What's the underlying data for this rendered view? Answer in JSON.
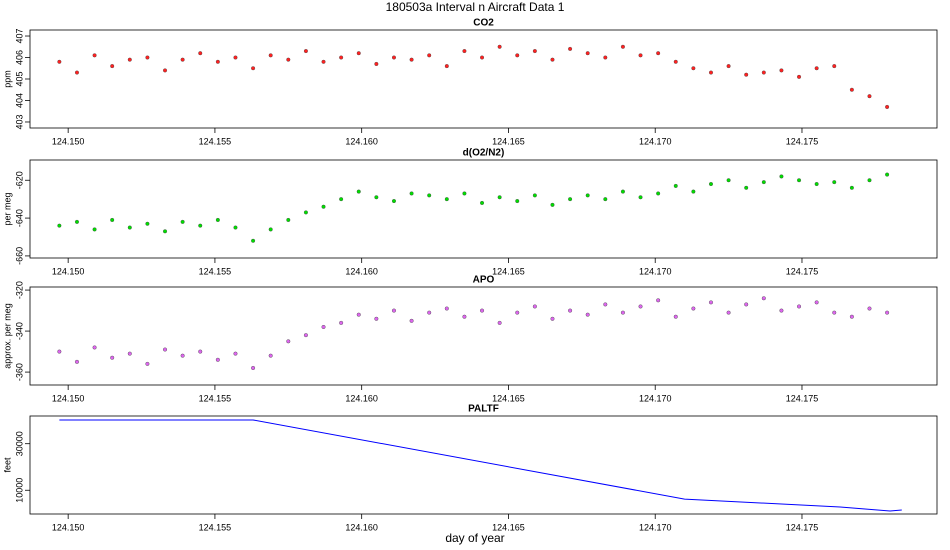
{
  "title": "180503a   Interval n Aircraft Data 1",
  "xlabel": "day of year",
  "chart_data": [
    {
      "type": "scatter",
      "title": "CO2",
      "ylabel": "ppm",
      "color": "#ff2020",
      "x": [
        124.1497,
        124.1503,
        124.1509,
        124.1515,
        124.1521,
        124.1527,
        124.1533,
        124.1539,
        124.1545,
        124.1551,
        124.1557,
        124.1563,
        124.1569,
        124.1575,
        124.1581,
        124.1587,
        124.1593,
        124.1599,
        124.1605,
        124.1611,
        124.1617,
        124.1623,
        124.1629,
        124.1635,
        124.1641,
        124.1647,
        124.1653,
        124.1659,
        124.1665,
        124.1671,
        124.1677,
        124.1683,
        124.1689,
        124.1695,
        124.1701,
        124.1707,
        124.1713,
        124.1719,
        124.1725,
        124.1731,
        124.1737,
        124.1743,
        124.1749,
        124.1755,
        124.1761,
        124.1767,
        124.1773,
        124.1779
      ],
      "values": [
        405.8,
        405.3,
        406.1,
        405.6,
        405.9,
        406.0,
        405.4,
        405.9,
        406.2,
        405.8,
        406.0,
        405.5,
        406.1,
        405.9,
        406.3,
        405.8,
        406.0,
        406.2,
        405.7,
        406.0,
        405.9,
        406.1,
        405.6,
        406.3,
        406.0,
        406.5,
        406.1,
        406.3,
        405.9,
        406.4,
        406.2,
        406.0,
        406.5,
        406.1,
        406.2,
        405.8,
        405.5,
        405.3,
        405.6,
        405.2,
        405.3,
        405.4,
        405.1,
        405.5,
        405.6,
        404.5,
        404.2,
        403.7
      ],
      "xlim": [
        124.1487,
        124.1796
      ],
      "ylim": [
        402.72,
        407.28
      ],
      "xticks": [
        {
          "value": 124.15,
          "label": "124.150"
        },
        124.155,
        {
          "value": 124.16,
          "label": "124.160"
        },
        124.165,
        {
          "value": 124.17,
          "label": "124.170"
        },
        124.175
      ],
      "yticks": [
        403,
        404,
        405,
        406,
        407
      ]
    },
    {
      "type": "scatter",
      "title": "d(O2/N2)",
      "ylabel": "per meg",
      "color": "#00dd00",
      "x": [
        124.1497,
        124.1503,
        124.1509,
        124.1515,
        124.1521,
        124.1527,
        124.1533,
        124.1539,
        124.1545,
        124.1551,
        124.1557,
        124.1563,
        124.1569,
        124.1575,
        124.1581,
        124.1587,
        124.1593,
        124.1599,
        124.1605,
        124.1611,
        124.1617,
        124.1623,
        124.1629,
        124.1635,
        124.1641,
        124.1647,
        124.1653,
        124.1659,
        124.1665,
        124.1671,
        124.1677,
        124.1683,
        124.1689,
        124.1695,
        124.1701,
        124.1707,
        124.1713,
        124.1719,
        124.1725,
        124.1731,
        124.1737,
        124.1743,
        124.1749,
        124.1755,
        124.1761,
        124.1767,
        124.1773,
        124.1779
      ],
      "values": [
        -644,
        -642,
        -646,
        -641,
        -645,
        -643,
        -647,
        -642,
        -644,
        -641,
        -645,
        -652,
        -646,
        -641,
        -637,
        -634,
        -630,
        -626,
        -629,
        -631,
        -627,
        -628,
        -630,
        -627,
        -632,
        -629,
        -631,
        -628,
        -633,
        -630,
        -628,
        -630,
        -626,
        -629,
        -627,
        -623,
        -626,
        -622,
        -620,
        -624,
        -621,
        -618,
        -620,
        -622,
        -621,
        -624,
        -620,
        -617
      ],
      "xlim": [
        124.1487,
        124.1796
      ],
      "ylim": [
        -661.1,
        -609.3
      ],
      "xticks": [
        {
          "value": 124.15,
          "label": "124.150"
        },
        124.155,
        {
          "value": 124.16,
          "label": "124.160"
        },
        124.165,
        {
          "value": 124.17,
          "label": "124.170"
        },
        124.175
      ],
      "yticks": [
        -660,
        -640,
        -620
      ]
    },
    {
      "type": "scatter",
      "title": "APO",
      "ylabel": "approx. per meg",
      "color": "#dd66ee",
      "x": [
        124.1497,
        124.1503,
        124.1509,
        124.1515,
        124.1521,
        124.1527,
        124.1533,
        124.1539,
        124.1545,
        124.1551,
        124.1557,
        124.1563,
        124.1569,
        124.1575,
        124.1581,
        124.1587,
        124.1593,
        124.1599,
        124.1605,
        124.1611,
        124.1617,
        124.1623,
        124.1629,
        124.1635,
        124.1641,
        124.1647,
        124.1653,
        124.1659,
        124.1665,
        124.1671,
        124.1677,
        124.1683,
        124.1689,
        124.1695,
        124.1701,
        124.1707,
        124.1713,
        124.1719,
        124.1725,
        124.1731,
        124.1737,
        124.1743,
        124.1749,
        124.1755,
        124.1761,
        124.1767,
        124.1773,
        124.1779
      ],
      "values": [
        -350,
        -355,
        -348,
        -353,
        -351,
        -356,
        -349,
        -352,
        -350,
        -354,
        -351,
        -358,
        -352,
        -345,
        -342,
        -338,
        -336,
        -332,
        -334,
        -330,
        -335,
        -331,
        -329,
        -333,
        -330,
        -336,
        -331,
        -328,
        -334,
        -330,
        -332,
        -327,
        -331,
        -328,
        -325,
        -333,
        -329,
        -326,
        -331,
        -327,
        -324,
        -330,
        -328,
        -326,
        -331,
        -333,
        -329,
        -331
      ],
      "xlim": [
        124.1487,
        124.1796
      ],
      "ylim": [
        -366.3,
        -318.5
      ],
      "xticks": [
        {
          "value": 124.15,
          "label": "124.150"
        },
        124.155,
        {
          "value": 124.16,
          "label": "124.160"
        },
        124.165,
        {
          "value": 124.17,
          "label": "124.170"
        },
        124.175
      ],
      "yticks": [
        -360,
        -340,
        -320
      ]
    },
    {
      "type": "line",
      "title": "PALTF",
      "ylabel": "feet",
      "color": "#0000ff",
      "x": [
        124.1497,
        124.1563,
        124.171,
        124.1763,
        124.178,
        124.1784
      ],
      "values": [
        40200,
        40200,
        6200,
        2800,
        1100,
        1500
      ],
      "xlim": [
        124.1487,
        124.1796
      ],
      "ylim": [
        -200,
        41900
      ],
      "xticks": [
        {
          "value": 124.15,
          "label": "124.150"
        },
        124.155,
        {
          "value": 124.16,
          "label": "124.160"
        },
        124.165,
        {
          "value": 124.17,
          "label": "124.170"
        },
        124.175
      ],
      "yticks": [
        10000,
        30000
      ]
    }
  ]
}
